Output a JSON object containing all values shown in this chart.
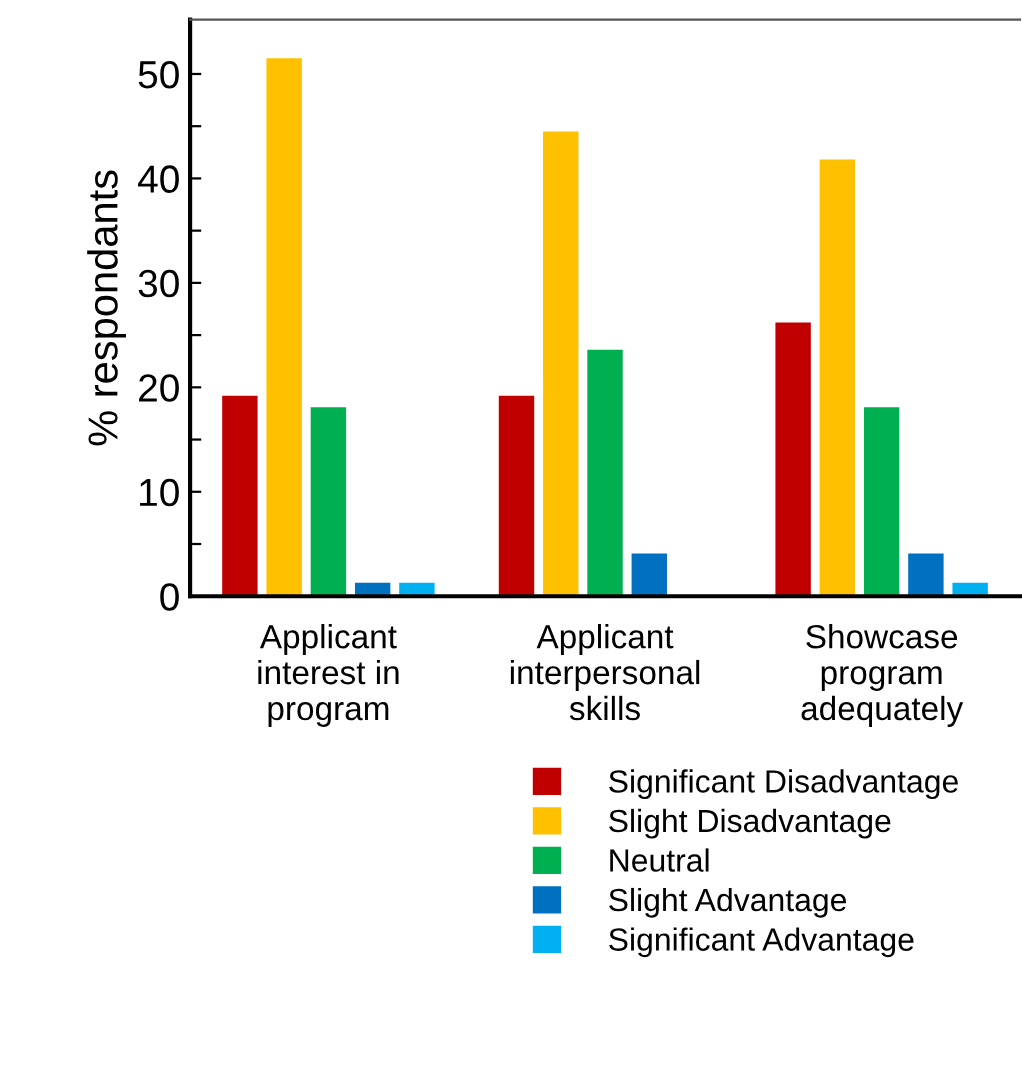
{
  "chart_data": {
    "type": "bar",
    "ylabel": "% respondants",
    "categories": [
      "Applicant\ninterest in\nprogram",
      "Applicant\ninterpersonal\nskills",
      "Showcase\nprogram\nadequately"
    ],
    "series": [
      {
        "name": "Significant Disadvantage",
        "color": "#c00000",
        "values": [
          19.2,
          19.2,
          26.2
        ]
      },
      {
        "name": "Slight Disadvantage",
        "color": "#ffc000",
        "values": [
          51.5,
          44.5,
          41.8
        ]
      },
      {
        "name": "Neutral",
        "color": "#00b050",
        "values": [
          18.1,
          23.6,
          18.1
        ]
      },
      {
        "name": "Slight Advantage",
        "color": "#0070c0",
        "values": [
          1.3,
          4.1,
          4.1
        ]
      },
      {
        "name": "Significant Advantage",
        "color": "#00b0f0",
        "values": [
          1.3,
          null,
          1.3
        ]
      }
    ],
    "ylim": [
      0,
      55.2
    ],
    "yticks": [
      0,
      {
        "value": 5,
        "label": null
      },
      10,
      {
        "value": 15,
        "label": null
      },
      20,
      {
        "value": 25,
        "label": null
      },
      30,
      {
        "value": 35,
        "label": null
      },
      40,
      {
        "value": 45,
        "label": null
      },
      50
    ],
    "legend": "bottom",
    "grid": false
  }
}
